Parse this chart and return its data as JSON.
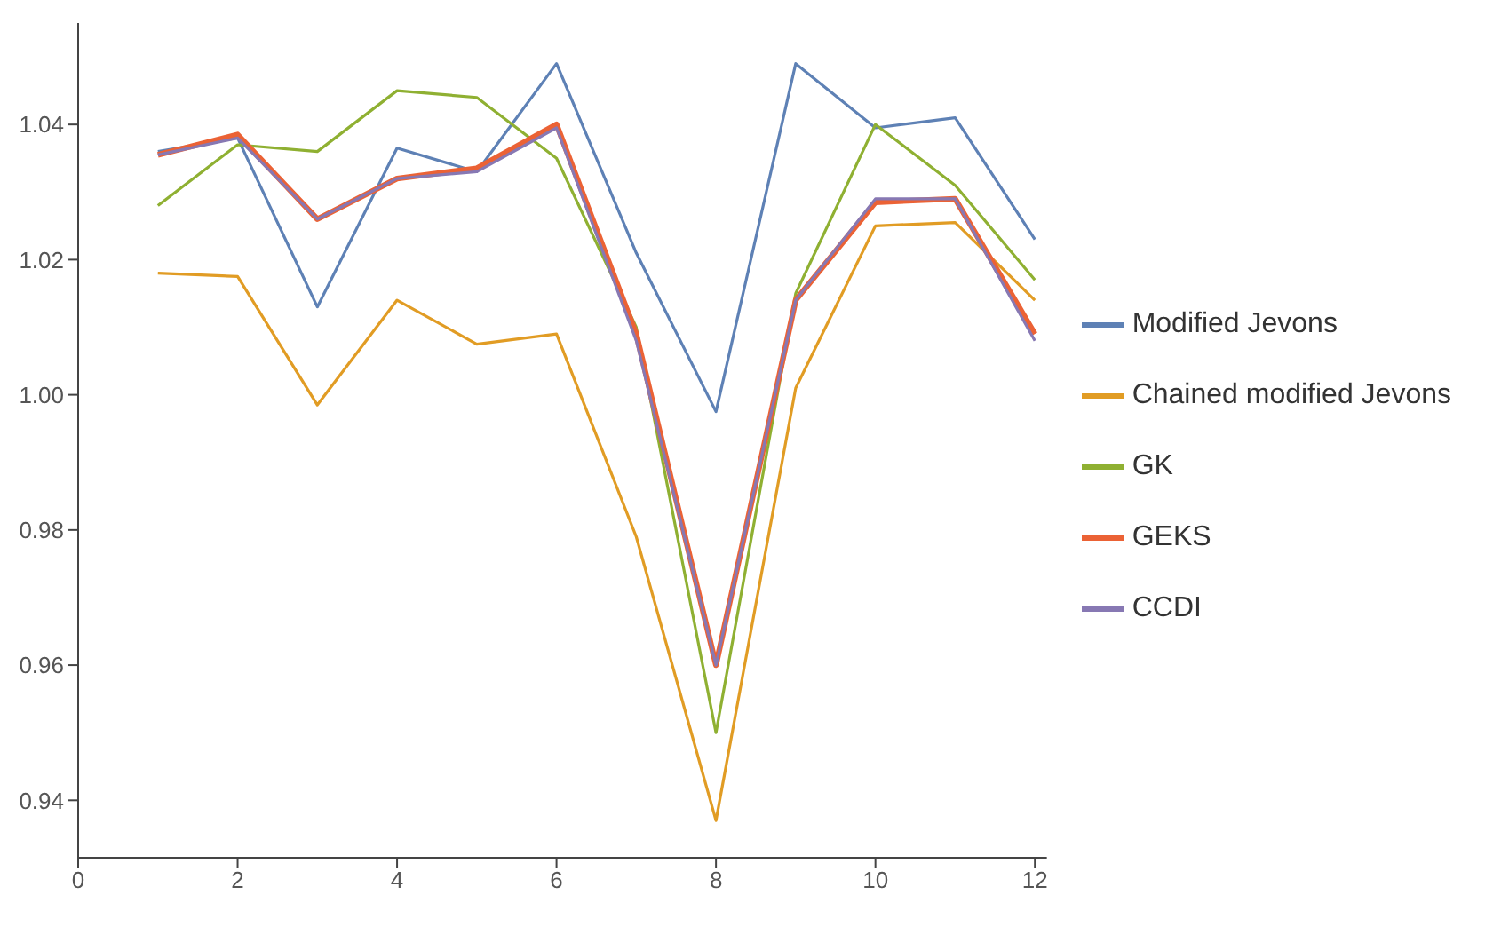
{
  "chart_data": {
    "type": "line",
    "x": [
      1,
      2,
      3,
      4,
      5,
      6,
      7,
      8,
      9,
      10,
      11,
      12
    ],
    "series": [
      {
        "name": "Modified Jevons",
        "color": "#5e81b5",
        "values": [
          1.036,
          1.038,
          1.013,
          1.0365,
          1.033,
          1.049,
          1.021,
          0.9975,
          1.049,
          1.0395,
          1.041,
          1.023
        ]
      },
      {
        "name": "Chained modified Jevons",
        "color": "#e19c24",
        "values": [
          1.018,
          1.0175,
          0.9985,
          1.014,
          1.0075,
          1.009,
          0.979,
          0.937,
          1.001,
          1.025,
          1.0255,
          1.014
        ]
      },
      {
        "name": "GK",
        "color": "#8fb032",
        "values": [
          1.028,
          1.037,
          1.036,
          1.045,
          1.044,
          1.035,
          1.01,
          0.95,
          1.015,
          1.04,
          1.031,
          1.017
        ]
      },
      {
        "name": "GEKS",
        "color": "#eb6235",
        "values": [
          1.0355,
          1.0385,
          1.026,
          1.032,
          1.0335,
          1.04,
          1.009,
          0.96,
          1.014,
          1.0285,
          1.029,
          1.009
        ]
      },
      {
        "name": "CCDI",
        "color": "#8778b3",
        "values": [
          1.0355,
          1.038,
          1.026,
          1.032,
          1.033,
          1.0395,
          1.008,
          0.96,
          1.014,
          1.029,
          1.029,
          1.008
        ]
      }
    ],
    "xlim": [
      0,
      12.15
    ],
    "xticks": [
      0,
      2,
      4,
      6,
      8,
      10,
      12
    ],
    "ylim": [
      0.9315,
      1.055
    ],
    "yticks": [
      {
        "value": 0.94,
        "label": "0.94"
      },
      {
        "value": 0.96,
        "label": "0.96"
      },
      {
        "value": 0.98,
        "label": "0.98"
      },
      {
        "value": 1.0,
        "label": "1.00"
      },
      {
        "value": 1.02,
        "label": "1.02"
      },
      {
        "value": 1.04,
        "label": "1.04"
      }
    ],
    "grid": false,
    "legend": "right",
    "marker": "none",
    "line_style": "solid"
  }
}
